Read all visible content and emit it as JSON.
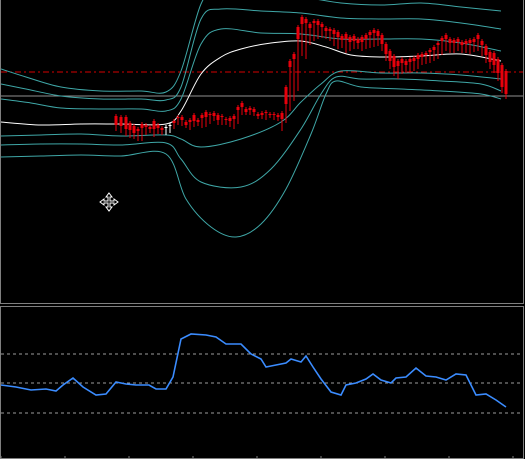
{
  "colors": {
    "background": "#000000",
    "bull_candle": "#ffffff",
    "bear_candle": "#e8000b",
    "band": "#3fa7a7",
    "middle_line": "#ffffff",
    "level_line": "#d40000",
    "oscillator": "#3b8cff",
    "separator": "#7f7f7f"
  },
  "icons": {
    "cursor": "move-cross-icon"
  },
  "price_chart": {
    "candles": [
      [
        115,
        117,
        130,
        126
      ],
      [
        120,
        118,
        132,
        127
      ],
      [
        125,
        118,
        135,
        130
      ],
      [
        129,
        124,
        137,
        131
      ],
      [
        133,
        127,
        138,
        134
      ],
      [
        137,
        130,
        140,
        132
      ],
      [
        141,
        125,
        140,
        129
      ],
      [
        145,
        126,
        134,
        128
      ],
      [
        149,
        128,
        132,
        130
      ],
      [
        153,
        122,
        136,
        130
      ],
      [
        157,
        126,
        133,
        129
      ],
      [
        161,
        129,
        134,
        131
      ],
      [
        165,
        129,
        134,
        128
      ],
      [
        169,
        127,
        132,
        126
      ],
      [
        173,
        122,
        128,
        124
      ],
      [
        177,
        118,
        124,
        119
      ],
      [
        181,
        118,
        125,
        121
      ],
      [
        185,
        123,
        127,
        126
      ],
      [
        189,
        121,
        129,
        123
      ],
      [
        193,
        116,
        126,
        122
      ],
      [
        197,
        121,
        125,
        123
      ],
      [
        201,
        116,
        127,
        119
      ],
      [
        205,
        113,
        126,
        118
      ],
      [
        209,
        115,
        123,
        116
      ],
      [
        213,
        114,
        120,
        117
      ],
      [
        217,
        116,
        124,
        121
      ],
      [
        221,
        117,
        124,
        118
      ],
      [
        225,
        120,
        124,
        121
      ],
      [
        229,
        119,
        126,
        122
      ],
      [
        233,
        117,
        128,
        120
      ],
      [
        237,
        108,
        123,
        111
      ],
      [
        241,
        104,
        114,
        108
      ],
      [
        245,
        110,
        114,
        113
      ],
      [
        249,
        109,
        114,
        111
      ],
      [
        253,
        110,
        115,
        113
      ],
      [
        257,
        115,
        118,
        117
      ],
      [
        261,
        114,
        118,
        116
      ],
      [
        265,
        113,
        119,
        114
      ],
      [
        269,
        115,
        117,
        116
      ],
      [
        273,
        115,
        119,
        116
      ],
      [
        277,
        116,
        120,
        118
      ],
      [
        281,
        114,
        130,
        120
      ],
      [
        285,
        88,
        122,
        105
      ],
      [
        289,
        62,
        110,
        68
      ],
      [
        293,
        55,
        100,
        60
      ],
      [
        297,
        28,
        90,
        40
      ],
      [
        301,
        18,
        55,
        25
      ],
      [
        305,
        20,
        58,
        24
      ],
      [
        309,
        25,
        44,
        29
      ],
      [
        313,
        22,
        40,
        24
      ],
      [
        317,
        22,
        38,
        26
      ],
      [
        321,
        25,
        37,
        28
      ],
      [
        325,
        29,
        38,
        32
      ],
      [
        329,
        30,
        40,
        32
      ],
      [
        333,
        31,
        45,
        35
      ],
      [
        337,
        33,
        48,
        38
      ],
      [
        341,
        37,
        47,
        41
      ],
      [
        345,
        35,
        52,
        40
      ],
      [
        349,
        38,
        50,
        43
      ],
      [
        353,
        37,
        48,
        42
      ],
      [
        357,
        40,
        48,
        44
      ],
      [
        361,
        38,
        50,
        43
      ],
      [
        365,
        36,
        48,
        40
      ],
      [
        369,
        33,
        47,
        36
      ],
      [
        373,
        31,
        46,
        34
      ],
      [
        377,
        32,
        45,
        37
      ],
      [
        381,
        36,
        50,
        45
      ],
      [
        385,
        45,
        60,
        55
      ],
      [
        389,
        52,
        68,
        62
      ],
      [
        393,
        57,
        75,
        68
      ],
      [
        397,
        62,
        78,
        67
      ],
      [
        401,
        60,
        73,
        64
      ],
      [
        405,
        62,
        72,
        66
      ],
      [
        409,
        60,
        72,
        63
      ],
      [
        413,
        59,
        70,
        62
      ],
      [
        417,
        56,
        68,
        60
      ],
      [
        421,
        55,
        64,
        58
      ],
      [
        425,
        54,
        63,
        56
      ],
      [
        429,
        51,
        62,
        53
      ],
      [
        433,
        48,
        60,
        51
      ],
      [
        437,
        44,
        58,
        46
      ],
      [
        441,
        39,
        54,
        42
      ],
      [
        445,
        36,
        50,
        40
      ],
      [
        449,
        40,
        52,
        44
      ],
      [
        453,
        41,
        52,
        44
      ],
      [
        457,
        40,
        50,
        43
      ],
      [
        461,
        43,
        52,
        46
      ],
      [
        465,
        42,
        52,
        45
      ],
      [
        469,
        41,
        53,
        44
      ],
      [
        473,
        40,
        51,
        43
      ],
      [
        477,
        36,
        50,
        40
      ],
      [
        481,
        42,
        55,
        46
      ],
      [
        485,
        47,
        62,
        56
      ],
      [
        489,
        53,
        68,
        63
      ],
      [
        493,
        54,
        72,
        66
      ],
      [
        497,
        60,
        80,
        74
      ],
      [
        501,
        66,
        92,
        88
      ],
      [
        505,
        72,
        98,
        95
      ]
    ],
    "bands": {
      "upper_3": [
        [
          0,
          70
        ],
        [
          25,
          78
        ],
        [
          60,
          88
        ],
        [
          100,
          92
        ],
        [
          140,
          92
        ],
        [
          165,
          93
        ],
        [
          180,
          72
        ],
        [
          200,
          5
        ],
        [
          215,
          -5
        ],
        [
          260,
          -3
        ],
        [
          300,
          -2
        ],
        [
          340,
          4
        ],
        [
          380,
          6
        ],
        [
          420,
          4
        ],
        [
          460,
          8
        ],
        [
          500,
          12
        ]
      ],
      "upper_2": [
        [
          0,
          85
        ],
        [
          25,
          90
        ],
        [
          60,
          97
        ],
        [
          100,
          100
        ],
        [
          140,
          100
        ],
        [
          165,
          101
        ],
        [
          180,
          88
        ],
        [
          200,
          20
        ],
        [
          220,
          10
        ],
        [
          260,
          12
        ],
        [
          300,
          14
        ],
        [
          340,
          19
        ],
        [
          380,
          20
        ],
        [
          420,
          20
        ],
        [
          460,
          24
        ],
        [
          500,
          30
        ]
      ],
      "upper_1": [
        [
          0,
          100
        ],
        [
          30,
          104
        ],
        [
          60,
          109
        ],
        [
          100,
          110
        ],
        [
          140,
          110
        ],
        [
          165,
          112
        ],
        [
          180,
          100
        ],
        [
          200,
          45
        ],
        [
          220,
          30
        ],
        [
          260,
          34
        ],
        [
          300,
          35
        ],
        [
          340,
          40
        ],
        [
          380,
          40
        ],
        [
          420,
          40
        ],
        [
          460,
          44
        ],
        [
          500,
          52
        ]
      ],
      "lower_1": [
        [
          0,
          137
        ],
        [
          40,
          136
        ],
        [
          80,
          135
        ],
        [
          120,
          137
        ],
        [
          165,
          136
        ],
        [
          180,
          140
        ],
        [
          200,
          148
        ],
        [
          240,
          140
        ],
        [
          280,
          123
        ],
        [
          300,
          103
        ],
        [
          320,
          85
        ],
        [
          340,
          72
        ],
        [
          380,
          74
        ],
        [
          420,
          74
        ],
        [
          460,
          76
        ],
        [
          500,
          80
        ]
      ],
      "lower_2": [
        [
          0,
          146
        ],
        [
          40,
          145
        ],
        [
          80,
          145
        ],
        [
          120,
          146
        ],
        [
          165,
          144
        ],
        [
          180,
          160
        ],
        [
          200,
          183
        ],
        [
          240,
          188
        ],
        [
          270,
          170
        ],
        [
          300,
          130
        ],
        [
          320,
          95
        ],
        [
          335,
          78
        ],
        [
          360,
          80
        ],
        [
          400,
          80
        ],
        [
          440,
          82
        ],
        [
          480,
          85
        ],
        [
          500,
          92
        ]
      ],
      "lower_3": [
        [
          0,
          158
        ],
        [
          40,
          157
        ],
        [
          80,
          156
        ],
        [
          120,
          157
        ],
        [
          165,
          155
        ],
        [
          185,
          200
        ],
        [
          210,
          228
        ],
        [
          235,
          238
        ],
        [
          260,
          225
        ],
        [
          285,
          190
        ],
        [
          310,
          135
        ],
        [
          325,
          95
        ],
        [
          335,
          82
        ],
        [
          360,
          88
        ],
        [
          400,
          90
        ],
        [
          440,
          92
        ],
        [
          480,
          95
        ],
        [
          500,
          100
        ]
      ]
    },
    "middle": [
      [
        0,
        123
      ],
      [
        40,
        126
      ],
      [
        80,
        125
      ],
      [
        120,
        125
      ],
      [
        165,
        125
      ],
      [
        180,
        112
      ],
      [
        200,
        75
      ],
      [
        220,
        58
      ],
      [
        240,
        50
      ],
      [
        270,
        44
      ],
      [
        300,
        42
      ],
      [
        325,
        48
      ],
      [
        350,
        56
      ],
      [
        380,
        58
      ],
      [
        420,
        57
      ],
      [
        460,
        55
      ],
      [
        500,
        62
      ]
    ],
    "levels": {
      "dashed_y": 73,
      "solid_y": 97
    }
  },
  "oscillator": {
    "levels_y": [
      47,
      76,
      106
    ],
    "series": [
      [
        0,
        78
      ],
      [
        15,
        80
      ],
      [
        30,
        83
      ],
      [
        45,
        82
      ],
      [
        55,
        84
      ],
      [
        62,
        78
      ],
      [
        72,
        71
      ],
      [
        82,
        80
      ],
      [
        95,
        88
      ],
      [
        105,
        87
      ],
      [
        115,
        75
      ],
      [
        125,
        77
      ],
      [
        135,
        78
      ],
      [
        148,
        78
      ],
      [
        155,
        82
      ],
      [
        165,
        82
      ],
      [
        172,
        70
      ],
      [
        180,
        32
      ],
      [
        190,
        27
      ],
      [
        205,
        28
      ],
      [
        215,
        30
      ],
      [
        225,
        37
      ],
      [
        240,
        37
      ],
      [
        250,
        47
      ],
      [
        260,
        52
      ],
      [
        265,
        60
      ],
      [
        275,
        58
      ],
      [
        285,
        56
      ],
      [
        290,
        52
      ],
      [
        300,
        55
      ],
      [
        305,
        49
      ],
      [
        312,
        60
      ],
      [
        320,
        72
      ],
      [
        330,
        85
      ],
      [
        340,
        88
      ],
      [
        345,
        78
      ],
      [
        355,
        76
      ],
      [
        365,
        72
      ],
      [
        372,
        67
      ],
      [
        380,
        73
      ],
      [
        390,
        76
      ],
      [
        395,
        71
      ],
      [
        405,
        70
      ],
      [
        415,
        61
      ],
      [
        425,
        69
      ],
      [
        435,
        70
      ],
      [
        445,
        73
      ],
      [
        455,
        67
      ],
      [
        465,
        68
      ],
      [
        475,
        88
      ],
      [
        485,
        87
      ],
      [
        495,
        93
      ],
      [
        505,
        100
      ]
    ]
  }
}
